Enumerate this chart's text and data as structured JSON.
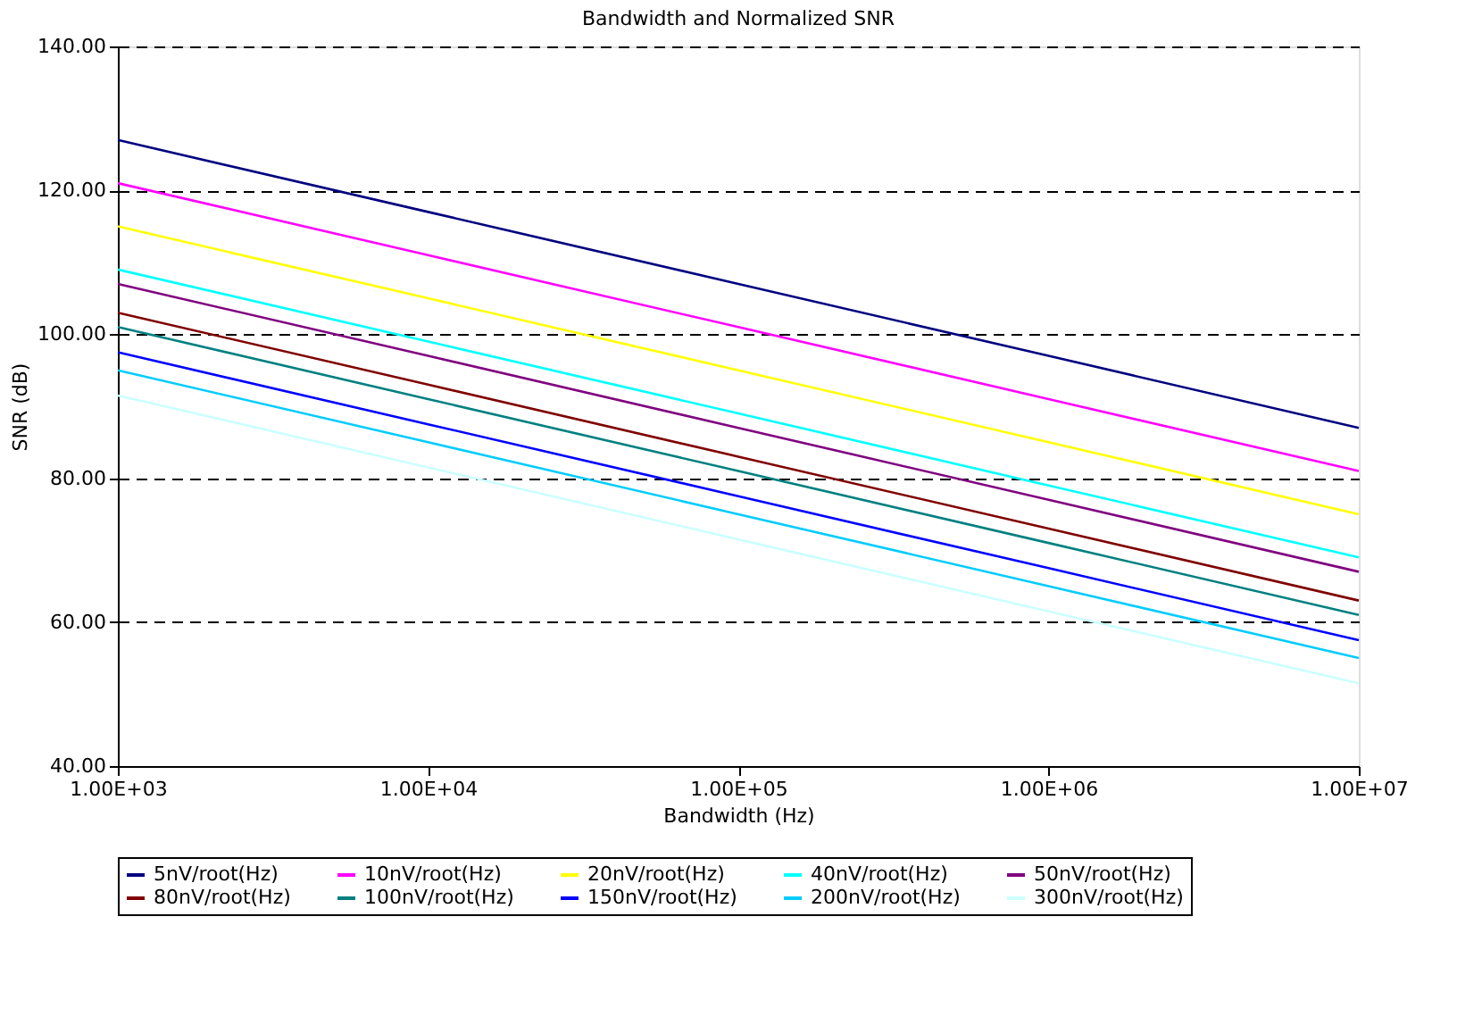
{
  "chart_data": {
    "type": "line",
    "title": "Bandwidth and Normalized SNR",
    "xlabel": "Bandwidth (Hz)",
    "ylabel": "SNR (dB)",
    "x": [
      1000,
      10000,
      100000,
      1000000,
      10000000
    ],
    "series": [
      {
        "name": "5nV/root(Hz)",
        "color": "#000080",
        "values": [
          127,
          117,
          107,
          97,
          87
        ]
      },
      {
        "name": "10nV/root(Hz)",
        "color": "#ff00ff",
        "values": [
          121,
          111,
          101,
          91,
          81
        ]
      },
      {
        "name": "20nV/root(Hz)",
        "color": "#ffff00",
        "values": [
          115,
          105,
          95,
          85,
          75
        ]
      },
      {
        "name": "40nV/root(Hz)",
        "color": "#00ffff",
        "values": [
          109,
          99,
          89,
          79,
          69
        ]
      },
      {
        "name": "50nV/root(Hz)",
        "color": "#800080",
        "values": [
          107,
          97,
          87,
          77,
          67
        ]
      },
      {
        "name": "80nV/root(Hz)",
        "color": "#800000",
        "values": [
          103,
          93,
          83,
          73,
          63
        ]
      },
      {
        "name": "100nV/root(Hz)",
        "color": "#008080",
        "values": [
          101,
          91,
          81,
          71,
          61
        ]
      },
      {
        "name": "150nV/root(Hz)",
        "color": "#0000ff",
        "values": [
          97.5,
          87.5,
          77.5,
          67.5,
          57.5
        ]
      },
      {
        "name": "200nV/root(Hz)",
        "color": "#00ccff",
        "values": [
          95,
          85,
          75,
          65,
          55
        ]
      },
      {
        "name": "300nV/root(Hz)",
        "color": "#ccffff",
        "values": [
          91.5,
          81.5,
          71.5,
          61.5,
          51.5
        ]
      }
    ],
    "log": "x",
    "xlim": [
      1000,
      10000000
    ],
    "xticks": [
      {
        "value": 1000,
        "label": "1.00E+03"
      },
      {
        "value": 10000,
        "label": "1.00E+04"
      },
      {
        "value": 100000,
        "label": "1.00E+05"
      },
      {
        "value": 1000000,
        "label": "1.00E+06"
      },
      {
        "value": 10000000,
        "label": "1.00E+07"
      }
    ],
    "ylim": [
      40,
      140
    ],
    "yticks": [
      {
        "value": 40,
        "label": "40.00"
      },
      {
        "value": 60,
        "label": "60.00"
      },
      {
        "value": 80,
        "label": "80.00"
      },
      {
        "value": 100,
        "label": "100.00"
      },
      {
        "value": 120,
        "label": "120.00"
      },
      {
        "value": 140,
        "label": "140.00"
      }
    ],
    "grid": "y",
    "legend": "bottom",
    "marker": "none",
    "line_style": "solid"
  }
}
